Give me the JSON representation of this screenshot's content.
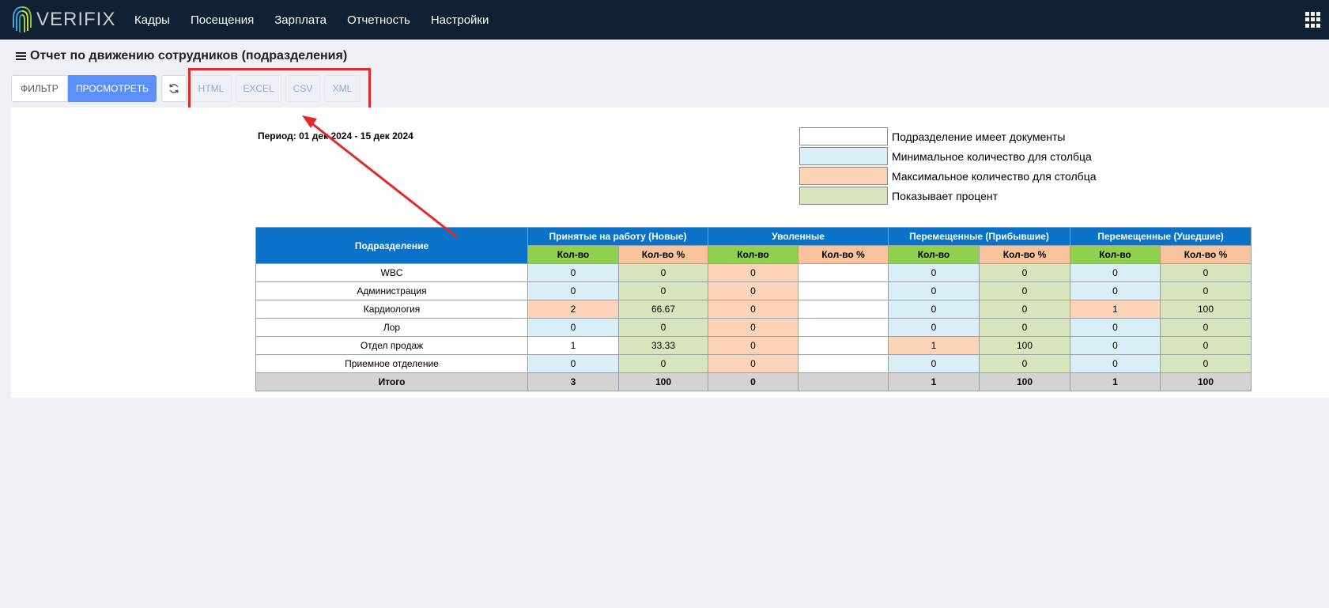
{
  "app": {
    "logo_text": "VERIFIX",
    "nav": [
      "Кадры",
      "Посещения",
      "Зарплата",
      "Отчетность",
      "Настройки"
    ],
    "apps_icon": "grid-icon"
  },
  "page": {
    "title": "Отчет по движению сотрудников (подразделения)",
    "menu_icon": "hamburger-icon"
  },
  "toolbar": {
    "filter_label": "ФИЛЬТР",
    "view_label": "ПРОСМОТРЕТЬ",
    "refresh_icon": "refresh-icon",
    "export": [
      "HTML",
      "EXCEL",
      "CSV",
      "XML"
    ]
  },
  "annotation": {
    "highlight_color": "#e3282a"
  },
  "report": {
    "period": "Период: 01 дек 2024 - 15 дек 2024",
    "legend": [
      {
        "color": "#ffffff",
        "label": "Подразделение имеет документы"
      },
      {
        "color": "#d9eef7",
        "label": "Минимальное количество для столбца"
      },
      {
        "color": "#fbd4b8",
        "label": "Максимальное количество для столбца"
      },
      {
        "color": "#d8e4bc",
        "label": "Показывает процент"
      }
    ],
    "table": {
      "dept_header": "Подразделение",
      "groups": [
        "Принятые на работу (Новые)",
        "Уволенные",
        "Перемещенные (Прибывшие)",
        "Перемещенные (Ушедшие)"
      ],
      "subheaders": [
        "Кол-во",
        "Кол-во %"
      ],
      "rows": [
        {
          "name": "WBC",
          "cells": [
            [
              "0",
              "c-blue"
            ],
            [
              "0",
              "c-green"
            ],
            [
              "0",
              "c-orange"
            ],
            [
              "",
              "c-white"
            ],
            [
              "0",
              "c-blue"
            ],
            [
              "0",
              "c-green"
            ],
            [
              "0",
              "c-blue"
            ],
            [
              "0",
              "c-green"
            ]
          ]
        },
        {
          "name": "Администрация",
          "cells": [
            [
              "0",
              "c-blue"
            ],
            [
              "0",
              "c-green"
            ],
            [
              "0",
              "c-orange"
            ],
            [
              "",
              "c-white"
            ],
            [
              "0",
              "c-blue"
            ],
            [
              "0",
              "c-green"
            ],
            [
              "0",
              "c-blue"
            ],
            [
              "0",
              "c-green"
            ]
          ]
        },
        {
          "name": "Кардиология",
          "cells": [
            [
              "2",
              "c-orange"
            ],
            [
              "66.67",
              "c-green"
            ],
            [
              "0",
              "c-orange"
            ],
            [
              "",
              "c-white"
            ],
            [
              "0",
              "c-blue"
            ],
            [
              "0",
              "c-green"
            ],
            [
              "1",
              "c-orange"
            ],
            [
              "100",
              "c-green"
            ]
          ]
        },
        {
          "name": "Лор",
          "cells": [
            [
              "0",
              "c-blue"
            ],
            [
              "0",
              "c-green"
            ],
            [
              "0",
              "c-orange"
            ],
            [
              "",
              "c-white"
            ],
            [
              "0",
              "c-blue"
            ],
            [
              "0",
              "c-green"
            ],
            [
              "0",
              "c-blue"
            ],
            [
              "0",
              "c-green"
            ]
          ]
        },
        {
          "name": "Отдел продаж",
          "cells": [
            [
              "1",
              "c-white right"
            ],
            [
              "33.33",
              "c-green"
            ],
            [
              "0",
              "c-orange"
            ],
            [
              "",
              "c-white"
            ],
            [
              "1",
              "c-orange"
            ],
            [
              "100",
              "c-green"
            ],
            [
              "0",
              "c-blue"
            ],
            [
              "0",
              "c-green"
            ]
          ]
        },
        {
          "name": "Приемное отделение",
          "cells": [
            [
              "0",
              "c-blue"
            ],
            [
              "0",
              "c-green"
            ],
            [
              "0",
              "c-orange"
            ],
            [
              "",
              "c-white"
            ],
            [
              "0",
              "c-blue"
            ],
            [
              "0",
              "c-green"
            ],
            [
              "0",
              "c-blue"
            ],
            [
              "0",
              "c-green"
            ]
          ]
        }
      ],
      "total": {
        "name": "Итого",
        "cells": [
          "3",
          "100",
          "0",
          "",
          "1",
          "100",
          "1",
          "100"
        ]
      }
    }
  }
}
